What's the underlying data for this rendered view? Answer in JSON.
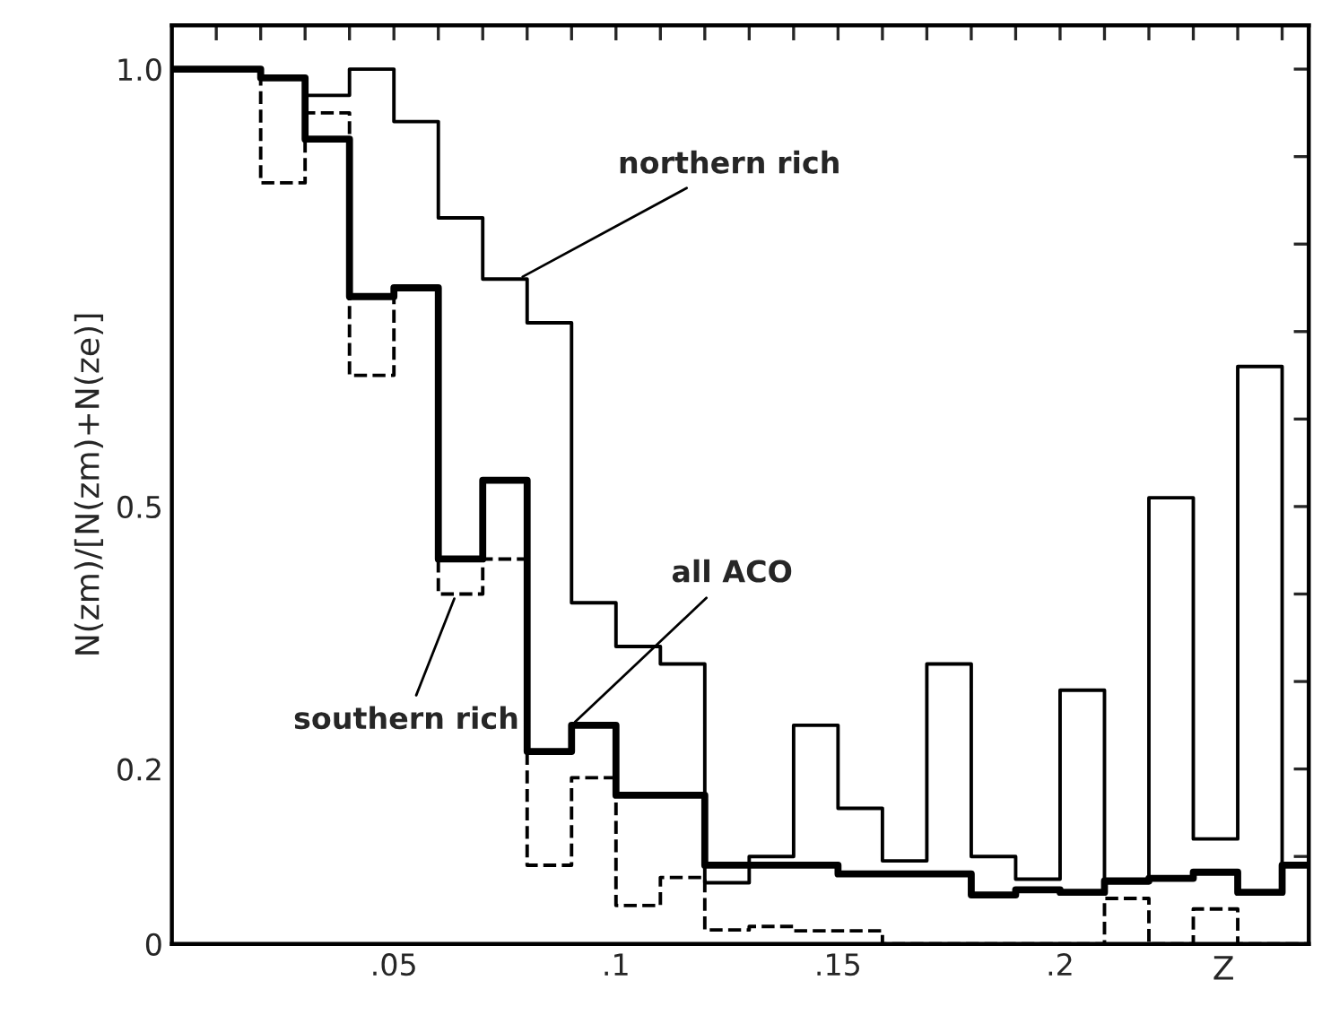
{
  "chart_data": {
    "type": "step",
    "xlabel": "Z",
    "ylabel": "N(zm)/[N(zm)+N(ze)]",
    "x": [
      0,
      0.01,
      0.02,
      0.03,
      0.04,
      0.05,
      0.06,
      0.07,
      0.08,
      0.09,
      0.1,
      0.11,
      0.12,
      0.13,
      0.14,
      0.15,
      0.16,
      0.17,
      0.18,
      0.19,
      0.2,
      0.21,
      0.22,
      0.23,
      0.24,
      0.25,
      0.256
    ],
    "series": [
      {
        "color": "#000000",
        "line_style": "solid",
        "values": [
          1.0,
          1.0,
          0.99,
          0.97,
          1.0,
          0.94,
          0.83,
          0.76,
          0.71,
          0.39,
          0.34,
          0.32,
          0.07,
          0.1,
          0.25,
          0.155,
          0.095,
          0.32,
          0.1,
          0.074,
          0.29,
          0.07,
          0.51,
          0.12,
          0.66,
          0.09,
          0.09
        ]
      },
      {
        "color": "#000000",
        "line_style": "solid",
        "values": [
          1.0,
          1.0,
          0.99,
          0.92,
          0.74,
          0.75,
          0.44,
          0.53,
          0.22,
          0.25,
          0.17,
          0.17,
          0.09,
          0.09,
          0.09,
          0.08,
          0.08,
          0.08,
          0.056,
          0.062,
          0.059,
          0.072,
          0.075,
          0.082,
          0.059,
          0.09,
          0.09
        ]
      },
      {
        "color": "#000000",
        "line_style": "dashed",
        "values": [
          1.0,
          1.0,
          0.87,
          0.95,
          0.65,
          0.75,
          0.4,
          0.44,
          0.09,
          0.19,
          0.044,
          0.076,
          0.016,
          0.02,
          0.015,
          0.015,
          0,
          0,
          0,
          0,
          0,
          0.052,
          0,
          0.04,
          0,
          0,
          0
        ]
      }
    ],
    "xlim": [
      0,
      0.256
    ],
    "ylim": [
      0,
      1.05
    ],
    "xticks": [
      {
        "value": 0.01,
        "label": null
      },
      {
        "value": 0.02,
        "label": null
      },
      {
        "value": 0.03,
        "label": null
      },
      {
        "value": 0.04,
        "label": null
      },
      {
        "value": 0.05,
        "label": ".05"
      },
      {
        "value": 0.06,
        "label": null
      },
      {
        "value": 0.07,
        "label": null
      },
      {
        "value": 0.08,
        "label": null
      },
      {
        "value": 0.09,
        "label": null
      },
      {
        "value": 0.1,
        "label": ".1"
      },
      {
        "value": 0.11,
        "label": null
      },
      {
        "value": 0.12,
        "label": null
      },
      {
        "value": 0.13,
        "label": null
      },
      {
        "value": 0.14,
        "label": null
      },
      {
        "value": 0.15,
        "label": ".15"
      },
      {
        "value": 0.16,
        "label": null
      },
      {
        "value": 0.17,
        "label": null
      },
      {
        "value": 0.18,
        "label": null
      },
      {
        "value": 0.19,
        "label": null
      },
      {
        "value": 0.2,
        "label": ".2"
      },
      {
        "value": 0.21,
        "label": null
      },
      {
        "value": 0.22,
        "label": null
      },
      {
        "value": 0.23,
        "label": null
      },
      {
        "value": 0.24,
        "label": null
      },
      {
        "value": 0.25,
        "label": null
      }
    ],
    "yticks": [
      0,
      {
        "value": 0.1,
        "label": null
      },
      {
        "value": 0.2,
        "label": "0.2"
      },
      {
        "value": 0.3,
        "label": null
      },
      {
        "value": 0.4,
        "label": null
      },
      {
        "value": 0.5,
        "label": "0.5"
      },
      {
        "value": 0.6,
        "label": null
      },
      {
        "value": 0.7,
        "label": null
      },
      {
        "value": 0.8,
        "label": null
      },
      {
        "value": 0.9,
        "label": null
      },
      {
        "value": 1.0,
        "label": "1.0"
      }
    ],
    "annotations": [
      {
        "text": "northern rich",
        "x": 0.078,
        "y": 0.76
      },
      {
        "text": "all ACO",
        "x": 0.09,
        "y": 0.25
      },
      {
        "text": "southern rich",
        "x": 0.064,
        "y": 0.4
      }
    ],
    "grid": false,
    "legend": false
  }
}
